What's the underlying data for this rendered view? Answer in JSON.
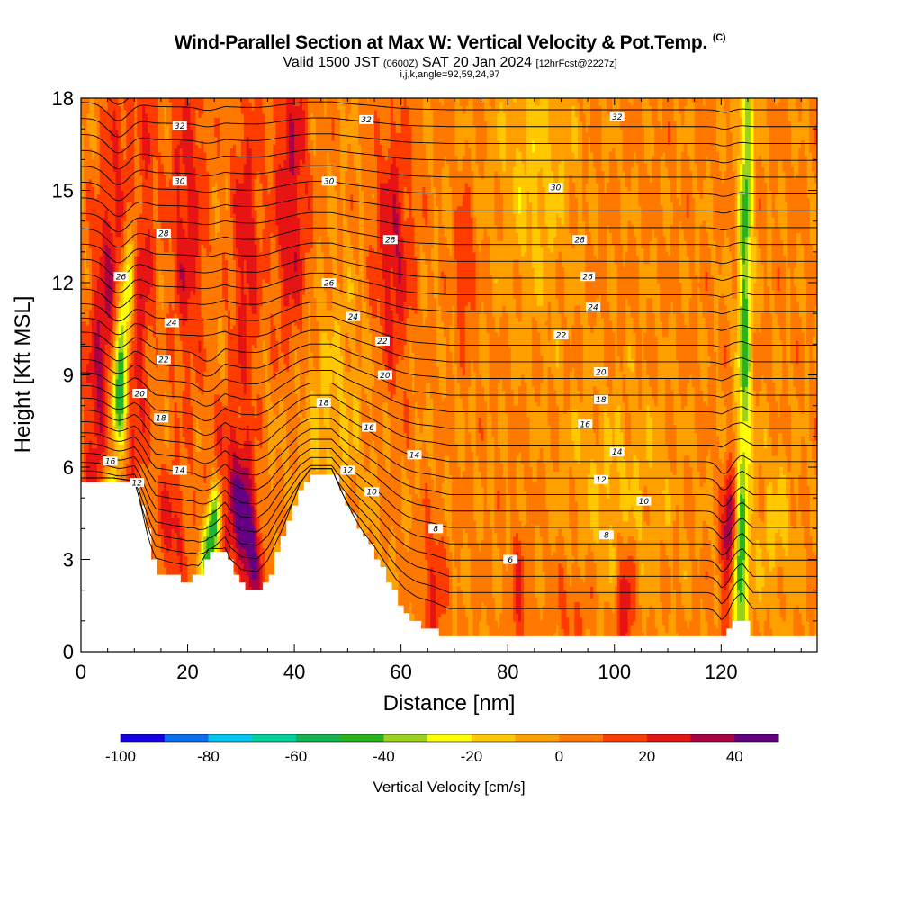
{
  "header": {
    "title": "Wind-Parallel Section at Max W: Vertical Velocity & Pot.Temp.",
    "title_mark": "(C)",
    "valid_prefix": "Valid 1500 JST",
    "valid_zulu": "(0600Z)",
    "valid_date": "SAT 20 Jan 2024",
    "forecast": "[12hrFcst@2227z]",
    "indices": "i,j,k,angle=92,59,24,97"
  },
  "chart_data": {
    "type": "heatmap",
    "xlabel": "Distance [nm]",
    "ylabel": "Height [Kft MSL]",
    "xlim": [
      0,
      138
    ],
    "ylim": [
      0,
      18
    ],
    "x_ticks": [
      0,
      20,
      40,
      60,
      80,
      100,
      120
    ],
    "y_ticks": [
      0,
      3,
      6,
      9,
      12,
      15,
      18
    ],
    "grid": false,
    "colorbar": {
      "title": "Vertical Velocity [cm/s]",
      "min": -100,
      "max": 50,
      "step": 10,
      "tick_labels": [
        -100,
        -80,
        -60,
        -40,
        -20,
        0,
        20,
        40
      ],
      "colors": [
        "#1400e6",
        "#0a6ef0",
        "#00c8f0",
        "#00d2a0",
        "#14b450",
        "#28b41e",
        "#9bd21e",
        "#ffff00",
        "#ffc800",
        "#ffa000",
        "#ff7800",
        "#ff3c00",
        "#e61414",
        "#aa0046",
        "#640082"
      ]
    },
    "background_level_color": "#ffa000",
    "terrain": [
      [
        0,
        5.5
      ],
      [
        6,
        5.5
      ],
      [
        10,
        5.4
      ],
      [
        11,
        4.8
      ],
      [
        12,
        4.0
      ],
      [
        13,
        3.2
      ],
      [
        14,
        2.6
      ],
      [
        17,
        2.4
      ],
      [
        20,
        2.3
      ],
      [
        22,
        2.6
      ],
      [
        24,
        3.2
      ],
      [
        27,
        3.2
      ],
      [
        28,
        2.6
      ],
      [
        30,
        2.1
      ],
      [
        33,
        2.0
      ],
      [
        35,
        2.5
      ],
      [
        37,
        3.5
      ],
      [
        39,
        4.4
      ],
      [
        41,
        5.3
      ],
      [
        43,
        5.8
      ],
      [
        47,
        5.8
      ],
      [
        49,
        5.0
      ],
      [
        51,
        4.3
      ],
      [
        53,
        3.7
      ],
      [
        55,
        3.1
      ],
      [
        57,
        2.4
      ],
      [
        59,
        1.7
      ],
      [
        61,
        1.2
      ],
      [
        63,
        0.9
      ],
      [
        66,
        0.7
      ],
      [
        69,
        0.4
      ],
      [
        75,
        0.4
      ],
      [
        100,
        0.4
      ],
      [
        120,
        0.4
      ],
      [
        121,
        0.8
      ],
      [
        122,
        1.1
      ],
      [
        124,
        1.1
      ],
      [
        125,
        0.7
      ],
      [
        126,
        0.4
      ],
      [
        138,
        0.4
      ]
    ],
    "velocity_features": [
      {
        "x": 6.5,
        "z": 7.0,
        "w": -75,
        "sx": 1.2,
        "sz": 5.0,
        "tilt": 0.45
      },
      {
        "x": 6.0,
        "z": 6.3,
        "w": 55,
        "sx": 0.9,
        "sz": 0.9,
        "tilt": 0
      },
      {
        "x": 4.0,
        "z": 9.5,
        "w": 30,
        "sx": 2.2,
        "sz": 6.0,
        "tilt": 0.3
      },
      {
        "x": 10.5,
        "z": 12.0,
        "w": 30,
        "sx": 2.0,
        "sz": 6.0,
        "tilt": 0.2
      },
      {
        "x": 24.5,
        "z": 3.8,
        "w": -65,
        "sx": 1.1,
        "sz": 1.2,
        "tilt": 0.5
      },
      {
        "x": 31.5,
        "z": 3.6,
        "w": 40,
        "sx": 1.6,
        "sz": 1.8,
        "tilt": -0.4
      },
      {
        "x": 27.5,
        "z": 5.0,
        "w": 25,
        "sx": 2.5,
        "sz": 2.0,
        "tilt": 0
      },
      {
        "x": 121.5,
        "z": 3.5,
        "w": 45,
        "sx": 1.0,
        "sz": 1.6,
        "tilt": 0.1
      },
      {
        "x": 124.5,
        "z": 12.0,
        "w": -45,
        "sx": 0.9,
        "sz": 9.0,
        "tilt": 0.05
      },
      {
        "x": 123.0,
        "z": 2.5,
        "w": -40,
        "sx": 0.9,
        "sz": 1.3,
        "tilt": 0
      },
      {
        "x": 39.5,
        "z": 14.5,
        "w": 28,
        "sx": 2.5,
        "sz": 4.5,
        "tilt": 0
      },
      {
        "x": 58.5,
        "z": 13.0,
        "w": 28,
        "sx": 2.5,
        "sz": 3.0,
        "tilt": 0
      },
      {
        "x": 72.0,
        "z": 12.5,
        "w": 22,
        "sx": 1.2,
        "sz": 1.5,
        "tilt": 0
      },
      {
        "x": 85.0,
        "z": 15.5,
        "w": -15,
        "sx": 5.0,
        "sz": 3.0,
        "tilt": 0
      },
      {
        "x": 45.0,
        "z": 8.0,
        "w": -12,
        "sx": 6.0,
        "sz": 3.0,
        "tilt": 0
      },
      {
        "x": 100.0,
        "z": 5.0,
        "w": -12,
        "sx": 7.0,
        "sz": 2.5,
        "tilt": 0
      },
      {
        "x": 102.0,
        "z": 1.5,
        "w": 30,
        "sx": 1.3,
        "sz": 1.5,
        "tilt": 0
      },
      {
        "x": 82.0,
        "z": 1.8,
        "w": 20,
        "sx": 1.0,
        "sz": 1.5,
        "tilt": 0
      },
      {
        "x": 66.0,
        "z": 2.0,
        "w": 22,
        "sx": 1.5,
        "sz": 1.5,
        "tilt": 0
      },
      {
        "x": 92.0,
        "z": 1.5,
        "w": 12,
        "sx": 3.0,
        "sz": 1.2,
        "tilt": 0
      },
      {
        "x": 17.0,
        "z": 4.0,
        "w": 22,
        "sx": 2.0,
        "sz": 1.5,
        "tilt": 0
      },
      {
        "x": 130.0,
        "z": 4.0,
        "w": -12,
        "sx": 3.0,
        "sz": 2.0,
        "tilt": 0
      },
      {
        "x": 20.0,
        "z": 14.0,
        "w": 25,
        "sx": 2.5,
        "sz": 4.0,
        "tilt": 0
      },
      {
        "x": 31.0,
        "z": 13.0,
        "w": 25,
        "sx": 2.0,
        "sz": 4.0,
        "tilt": 0
      }
    ],
    "theta_contours": {
      "levels": [
        2,
        3,
        4,
        5,
        6,
        7,
        8,
        9,
        10,
        11,
        12,
        13,
        14,
        15,
        16,
        17,
        18,
        19,
        20,
        21,
        22,
        23,
        24,
        25,
        26,
        27,
        28,
        29,
        30,
        31,
        32,
        33
      ],
      "labels": [
        {
          "text": "32",
          "x": 18.5,
          "z": 17.1
        },
        {
          "text": "32",
          "x": 53.5,
          "z": 17.3
        },
        {
          "text": "32",
          "x": 100.5,
          "z": 17.4
        },
        {
          "text": "30",
          "x": 18.5,
          "z": 15.3
        },
        {
          "text": "30",
          "x": 46.5,
          "z": 15.3
        },
        {
          "text": "30",
          "x": 89.0,
          "z": 15.1
        },
        {
          "text": "28",
          "x": 15.5,
          "z": 13.6
        },
        {
          "text": "28",
          "x": 58.0,
          "z": 13.4
        },
        {
          "text": "28",
          "x": 93.5,
          "z": 13.4
        },
        {
          "text": "26",
          "x": 7.5,
          "z": 12.2
        },
        {
          "text": "26",
          "x": 46.5,
          "z": 12.0
        },
        {
          "text": "26",
          "x": 95.0,
          "z": 12.2
        },
        {
          "text": "24",
          "x": 17.0,
          "z": 10.7
        },
        {
          "text": "24",
          "x": 51.0,
          "z": 10.9
        },
        {
          "text": "24",
          "x": 96.0,
          "z": 11.2
        },
        {
          "text": "22",
          "x": 15.5,
          "z": 9.5
        },
        {
          "text": "22",
          "x": 56.5,
          "z": 10.1
        },
        {
          "text": "22",
          "x": 90.0,
          "z": 10.3
        },
        {
          "text": "20",
          "x": 11.0,
          "z": 8.4
        },
        {
          "text": "20",
          "x": 57.0,
          "z": 9.0
        },
        {
          "text": "20",
          "x": 97.5,
          "z": 9.1
        },
        {
          "text": "18",
          "x": 15.0,
          "z": 7.6
        },
        {
          "text": "18",
          "x": 45.5,
          "z": 8.1
        },
        {
          "text": "18",
          "x": 97.5,
          "z": 8.2
        },
        {
          "text": "16",
          "x": 5.5,
          "z": 6.2
        },
        {
          "text": "16",
          "x": 54.0,
          "z": 7.3
        },
        {
          "text": "16",
          "x": 94.5,
          "z": 7.4
        },
        {
          "text": "14",
          "x": 18.5,
          "z": 5.9
        },
        {
          "text": "14",
          "x": 62.5,
          "z": 6.4
        },
        {
          "text": "14",
          "x": 100.5,
          "z": 6.5
        },
        {
          "text": "12",
          "x": 10.5,
          "z": 5.5
        },
        {
          "text": "12",
          "x": 50.0,
          "z": 5.9
        },
        {
          "text": "12",
          "x": 97.5,
          "z": 5.6
        },
        {
          "text": "10",
          "x": 54.5,
          "z": 5.2
        },
        {
          "text": "10",
          "x": 105.5,
          "z": 4.9
        },
        {
          "text": "8",
          "x": 66.5,
          "z": 4.0
        },
        {
          "text": "8",
          "x": 98.5,
          "z": 3.8
        },
        {
          "text": "6",
          "x": 80.5,
          "z": 3.0
        }
      ]
    }
  }
}
